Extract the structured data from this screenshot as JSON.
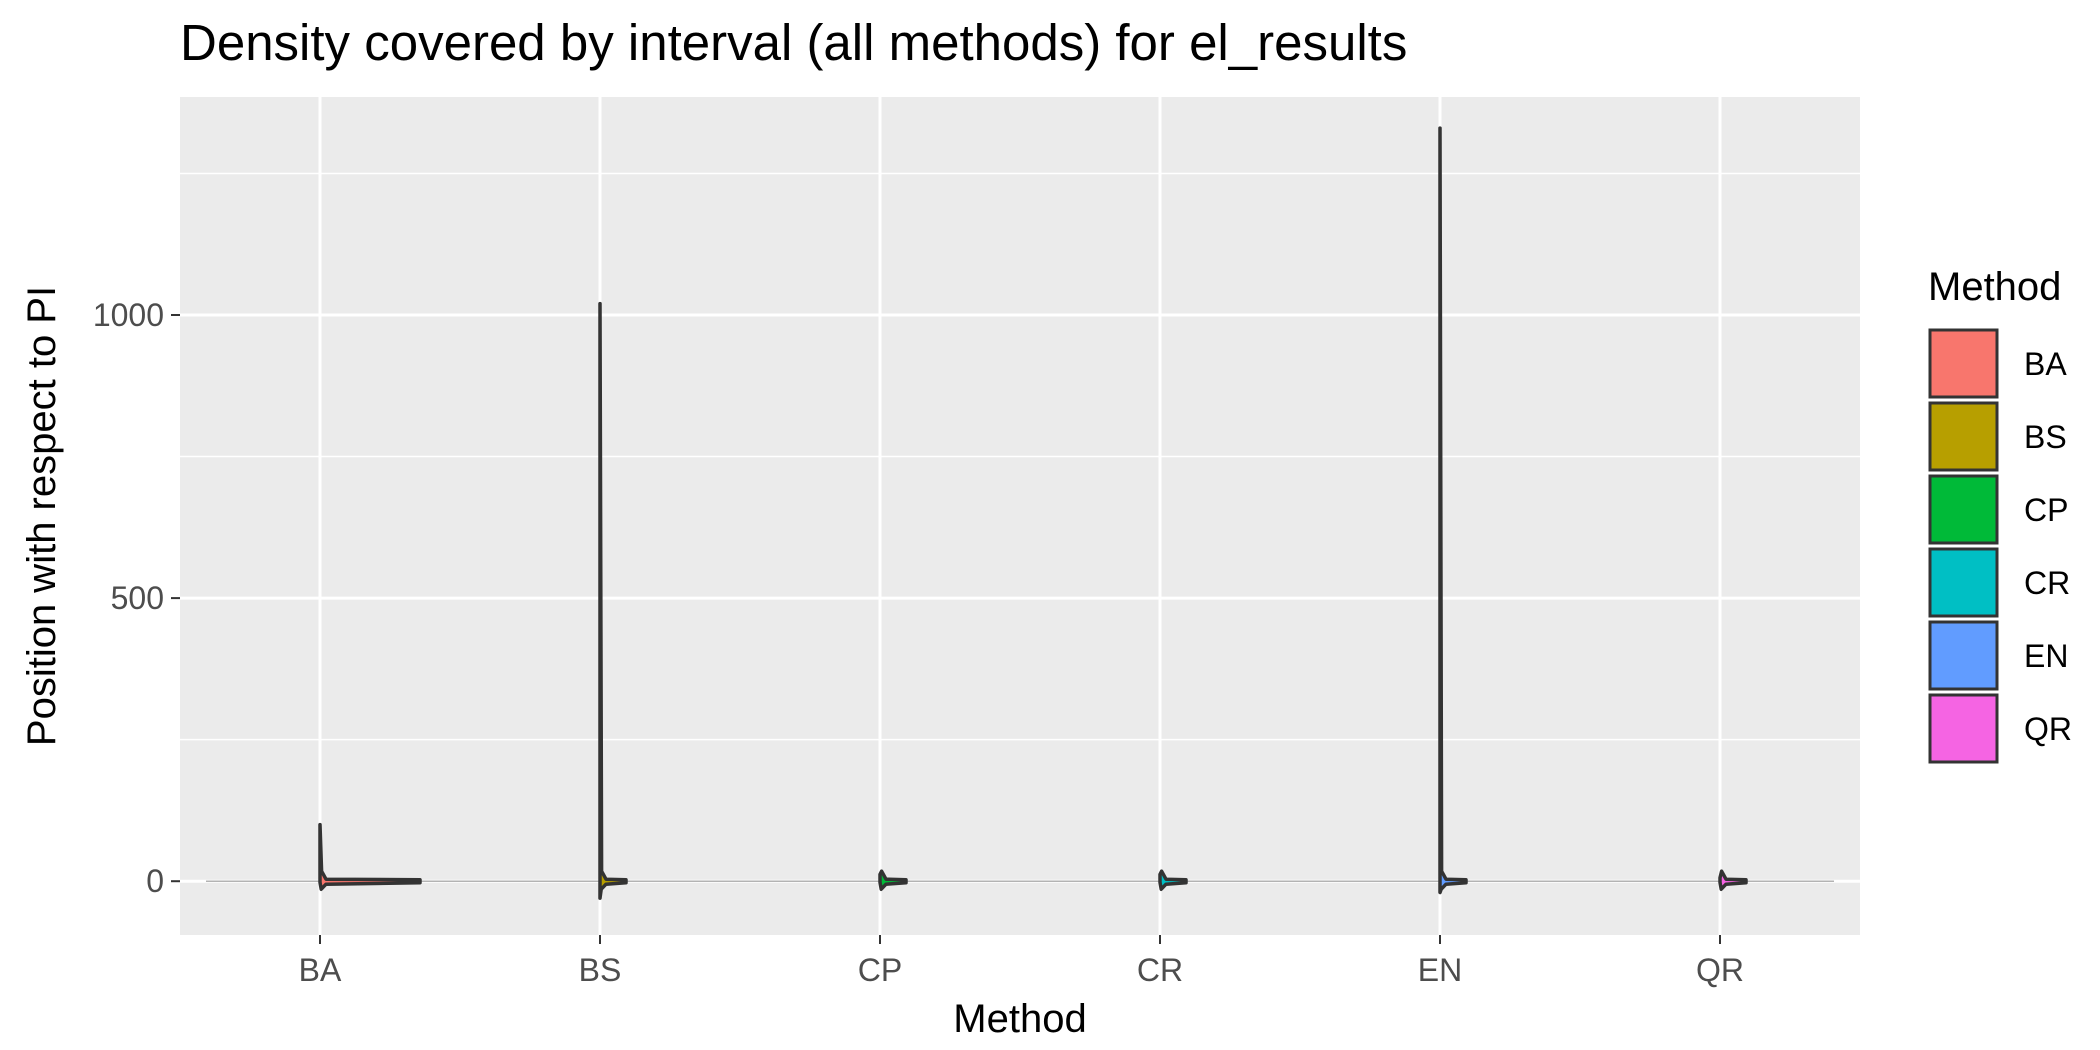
{
  "chart_data": {
    "type": "violin",
    "title": "Density covered by interval (all methods) for el_results",
    "xlabel": "Method",
    "ylabel": "Position with respect to PI",
    "categories": [
      "BA",
      "BS",
      "CP",
      "CR",
      "EN",
      "QR"
    ],
    "y_ticks": [
      0,
      500,
      1000
    ],
    "y_tick_labels": [
      "0",
      "500",
      "1000"
    ],
    "ylim": [
      -95,
      1385
    ],
    "grid": true,
    "legend": {
      "title": "Method",
      "placement": "right",
      "entries": [
        "BA",
        "BS",
        "CP",
        "CR",
        "EN",
        "QR"
      ]
    },
    "series": [
      {
        "name": "BA",
        "color": "#F8766D",
        "min": -2,
        "max": 100
      },
      {
        "name": "BS",
        "color": "#B79F00",
        "min": -30,
        "max": 1020
      },
      {
        "name": "CP",
        "color": "#00BA38",
        "min": -2,
        "max": 12
      },
      {
        "name": "CR",
        "color": "#00BFC4",
        "min": -2,
        "max": 12
      },
      {
        "name": "EN",
        "color": "#619CFF",
        "min": -20,
        "max": 1330
      },
      {
        "name": "QR",
        "color": "#F564E3",
        "min": -2,
        "max": 6
      }
    ]
  }
}
